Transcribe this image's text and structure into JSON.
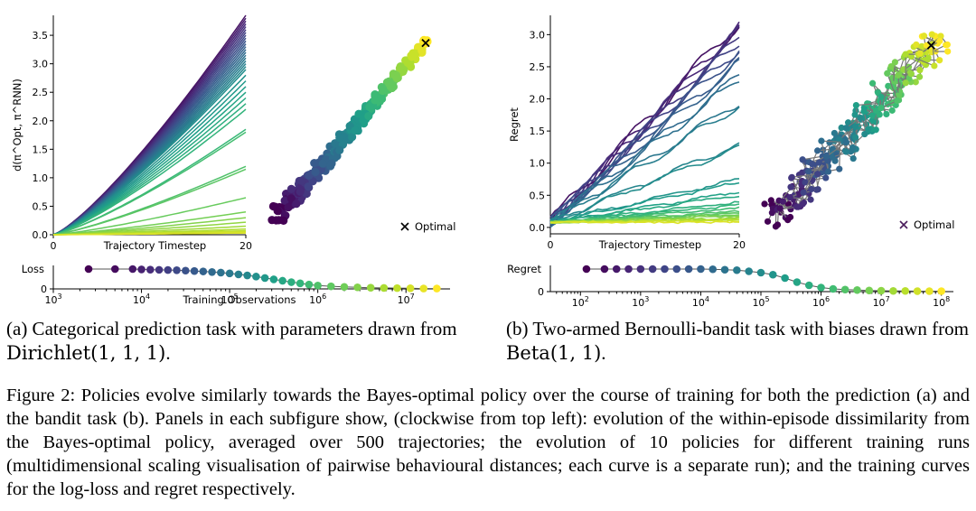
{
  "panel_a": {
    "caption_main": "(a) Categorical prediction task with parameters drawn from ",
    "caption_math": "Dirichlet(1, 1, 1)",
    "caption_end": "."
  },
  "panel_b": {
    "caption_main": "(b) Two-armed Bernoulli-bandit task with biases drawn from ",
    "caption_math": "Beta(1, 1)",
    "caption_end": "."
  },
  "figure_caption": "Figure 2: Policies evolve similarly towards the Bayes-optimal policy over the course of training for both the prediction (a) and the bandit task (b). Panels in each subfigure show, (clockwise from top left): evolution of the within-episode dissimilarity from the Bayes-optimal policy, averaged over 500 trajectories; the evolution of 10 policies for different training runs (multidimensional scaling visualisation of pairwise behavioural distances; each curve is a separate run); and the training curves for the log-loss and regret respectively.",
  "chart_data": [
    {
      "id": "a-dissimilarity",
      "type": "line",
      "xlabel": "Trajectory Timestep",
      "ylabel": "d(π^Opt, π^RNN)",
      "xlim": [
        0,
        20
      ],
      "ylim": [
        0,
        3.85
      ],
      "x_ticks": [
        "0",
        "20"
      ],
      "y_ticks": [
        "0.0",
        "0.5",
        "1.0",
        "1.5",
        "2.0",
        "2.5",
        "3.0",
        "3.5"
      ],
      "curve_count": 40,
      "final_values": [
        3.85,
        3.8,
        3.75,
        3.7,
        3.65,
        3.6,
        3.55,
        3.5,
        3.45,
        3.4,
        3.35,
        3.3,
        3.25,
        3.2,
        3.15,
        3.1,
        3.05,
        3.0,
        2.95,
        2.9,
        2.8,
        2.7,
        2.6,
        2.5,
        2.4,
        2.3,
        2.2,
        1.85,
        1.8,
        1.2,
        1.15,
        0.65,
        0.4,
        0.3,
        0.22,
        0.15,
        0.1,
        0.07,
        0.05,
        0.03
      ],
      "colormap": "viridis"
    },
    {
      "id": "a-mds",
      "type": "scatter",
      "legend": "Optimal",
      "legend_position": "bottom-right",
      "optimal_marker": [
        0.9,
        0.92
      ],
      "colormap": "viridis"
    },
    {
      "id": "a-loss",
      "type": "scatter",
      "ylabel": "Loss",
      "xlabel": "Training Observations",
      "x_scale": "log",
      "xlim_log10": [
        3,
        7.5
      ],
      "x_tick_exponents": [
        3,
        4,
        5,
        6,
        7
      ],
      "y_ticks": [
        "0"
      ],
      "points": [
        [
          3.4,
          1.0
        ],
        [
          3.7,
          1.0
        ],
        [
          3.9,
          1.0
        ],
        [
          4.0,
          0.98
        ],
        [
          4.1,
          0.97
        ],
        [
          4.2,
          0.96
        ],
        [
          4.3,
          0.95
        ],
        [
          4.4,
          0.94
        ],
        [
          4.5,
          0.92
        ],
        [
          4.6,
          0.9
        ],
        [
          4.7,
          0.88
        ],
        [
          4.8,
          0.85
        ],
        [
          4.9,
          0.82
        ],
        [
          5.0,
          0.78
        ],
        [
          5.1,
          0.73
        ],
        [
          5.2,
          0.68
        ],
        [
          5.3,
          0.62
        ],
        [
          5.4,
          0.55
        ],
        [
          5.5,
          0.48
        ],
        [
          5.6,
          0.41
        ],
        [
          5.7,
          0.34
        ],
        [
          5.8,
          0.28
        ],
        [
          5.9,
          0.22
        ],
        [
          6.0,
          0.17
        ],
        [
          6.15,
          0.13
        ],
        [
          6.3,
          0.1
        ],
        [
          6.45,
          0.08
        ],
        [
          6.6,
          0.06
        ],
        [
          6.75,
          0.05
        ],
        [
          6.9,
          0.04
        ],
        [
          7.05,
          0.03
        ],
        [
          7.2,
          0.02
        ],
        [
          7.35,
          0.02
        ]
      ],
      "colormap": "viridis"
    },
    {
      "id": "b-regret",
      "type": "line",
      "xlabel": "Trajectory Timestep",
      "ylabel": "Regret",
      "xlim": [
        0,
        20
      ],
      "ylim": [
        -0.1,
        3.3
      ],
      "x_ticks": [
        "0",
        "20"
      ],
      "y_ticks": [
        "0.0",
        "0.5",
        "1.0",
        "1.5",
        "2.0",
        "2.5",
        "3.0"
      ],
      "curve_count": 32,
      "final_values": [
        3.2,
        3.15,
        3.1,
        3.05,
        2.95,
        2.9,
        2.8,
        2.75,
        2.6,
        2.55,
        2.35,
        2.3,
        1.95,
        1.9,
        1.3,
        1.25,
        0.75,
        0.7,
        0.55,
        0.5,
        0.4,
        0.35,
        0.3,
        0.25,
        0.22,
        0.2,
        0.18,
        0.15,
        0.13,
        0.12,
        0.1,
        0.08
      ],
      "colormap": "viridis"
    },
    {
      "id": "b-mds",
      "type": "scatter",
      "legend": "Optimal",
      "legend_position": "bottom-right",
      "optimal_marker": [
        0.88,
        0.9
      ],
      "colormap": "viridis"
    },
    {
      "id": "b-regret-training",
      "type": "scatter",
      "ylabel": "Regret",
      "x_scale": "log",
      "xlim_log10": [
        1.5,
        8.2
      ],
      "x_tick_exponents": [
        2,
        3,
        4,
        5,
        6,
        7,
        8
      ],
      "y_ticks": [
        "0"
      ],
      "points": [
        [
          2.1,
          1.0
        ],
        [
          2.4,
          1.0
        ],
        [
          2.6,
          1.0
        ],
        [
          2.8,
          1.0
        ],
        [
          3.0,
          1.0
        ],
        [
          3.2,
          1.0
        ],
        [
          3.4,
          1.0
        ],
        [
          3.6,
          1.0
        ],
        [
          3.8,
          1.0
        ],
        [
          4.0,
          1.0
        ],
        [
          4.2,
          0.99
        ],
        [
          4.4,
          0.97
        ],
        [
          4.6,
          0.95
        ],
        [
          4.8,
          0.9
        ],
        [
          5.0,
          0.84
        ],
        [
          5.2,
          0.75
        ],
        [
          5.4,
          0.6
        ],
        [
          5.6,
          0.42
        ],
        [
          5.8,
          0.28
        ],
        [
          6.0,
          0.18
        ],
        [
          6.2,
          0.12
        ],
        [
          6.4,
          0.09
        ],
        [
          6.6,
          0.07
        ],
        [
          6.8,
          0.05
        ],
        [
          7.0,
          0.04
        ],
        [
          7.2,
          0.03
        ],
        [
          7.4,
          0.03
        ],
        [
          7.6,
          0.02
        ],
        [
          7.8,
          0.02
        ],
        [
          8.0,
          0.02
        ]
      ],
      "colormap": "viridis"
    }
  ]
}
